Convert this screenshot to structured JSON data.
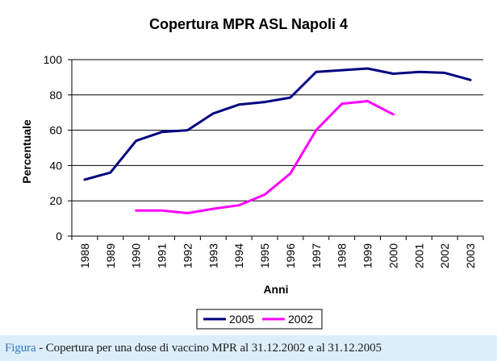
{
  "chart_data": {
    "type": "line",
    "title": "Copertura MPR ASL Napoli 4",
    "xlabel": "Anni",
    "ylabel": "Percentuale",
    "categories": [
      "1988",
      "1989",
      "1990",
      "1991",
      "1992",
      "1993",
      "1994",
      "1995",
      "1996",
      "1997",
      "1998",
      "1999",
      "2000",
      "2001",
      "2002",
      "2003"
    ],
    "ylim": [
      0,
      100
    ],
    "yticks": [
      "0",
      "20",
      "40",
      "60",
      "80",
      "100"
    ],
    "grid": true,
    "legend_position": "bottom",
    "series": [
      {
        "name": "2005",
        "color": "#000080",
        "values": [
          32,
          36,
          54,
          59,
          60,
          69.5,
          74.5,
          76,
          78.5,
          93,
          94,
          95,
          92,
          93,
          92.5,
          88.5
        ]
      },
      {
        "name": "2002",
        "color": "#ff00ff",
        "values": [
          null,
          null,
          14.5,
          14.5,
          13,
          15.5,
          17.5,
          23.5,
          35.5,
          60,
          75,
          76.5,
          69,
          null,
          null,
          null
        ]
      }
    ]
  },
  "caption": {
    "label": "Figura",
    "text": " - Copertura per una dose di vaccino MPR al 31.12.2002 e al 31.12.2005"
  }
}
